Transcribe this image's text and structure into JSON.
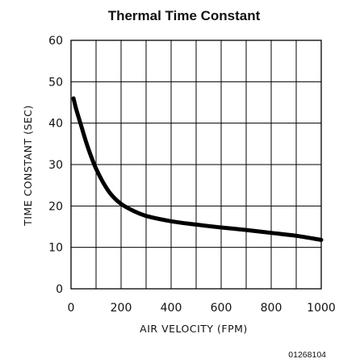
{
  "chart_data": {
    "type": "line",
    "title": "Thermal Time Constant",
    "xlabel": "AIR VELOCITY (FPM)",
    "ylabel": "TIME CONSTANT (SEC)",
    "xlim": [
      0,
      1000
    ],
    "ylim": [
      0,
      60
    ],
    "x_ticks": [
      "0",
      "200",
      "400",
      "600",
      "800",
      "1000"
    ],
    "y_ticks": [
      "0",
      "10",
      "20",
      "30",
      "40",
      "50",
      "60"
    ],
    "grid": true,
    "series": [
      {
        "x": [
          10,
          20,
          40,
          60,
          80,
          100,
          130,
          160,
          200,
          250,
          300,
          400,
          500,
          600,
          700,
          800,
          900,
          1000
        ],
        "y": [
          46,
          43.5,
          39.5,
          35.5,
          32,
          29,
          25.5,
          22.8,
          20.5,
          18.8,
          17.6,
          16.3,
          15.5,
          14.8,
          14.2,
          13.5,
          12.8,
          11.8
        ]
      }
    ],
    "color": "#000000"
  },
  "figure_ref": "01268104"
}
